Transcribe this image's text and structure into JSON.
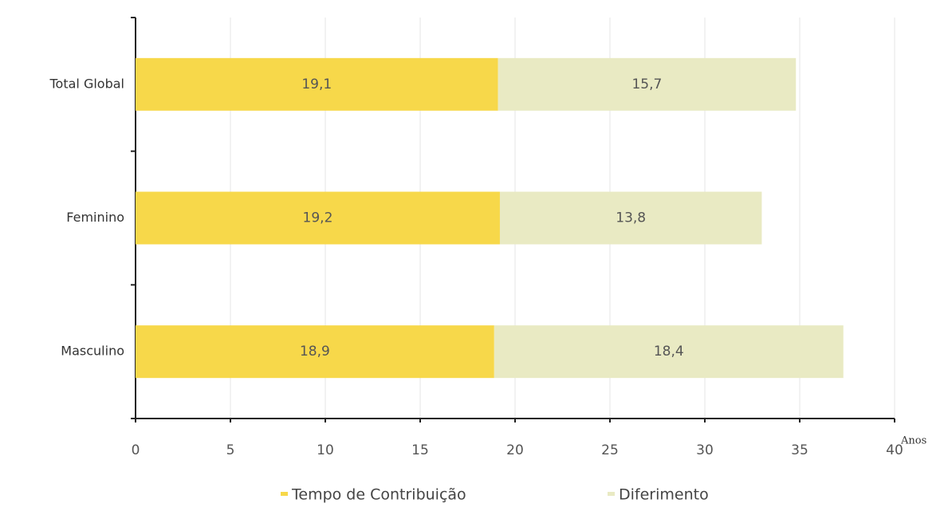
{
  "chart_data": {
    "type": "stacked-barh",
    "categories": [
      "Total Global",
      "Feminino",
      "Masculino"
    ],
    "series": [
      {
        "name": "Tempo de Contribuição",
        "color": "#f7d84a",
        "values": [
          19.1,
          19.2,
          18.9
        ],
        "value_labels": [
          "19,1",
          "19,2",
          "18,9"
        ]
      },
      {
        "name": "Diferimento",
        "color": "#e9eac3",
        "values": [
          15.7,
          13.8,
          18.4
        ],
        "value_labels": [
          "15,7",
          "13,8",
          "18,4"
        ]
      }
    ],
    "xlim": [
      0,
      40
    ],
    "xticks": [
      0,
      5,
      10,
      15,
      20,
      25,
      30,
      35,
      40
    ],
    "x_axis_label": "Anos",
    "grid": true,
    "legend": "bottom"
  }
}
